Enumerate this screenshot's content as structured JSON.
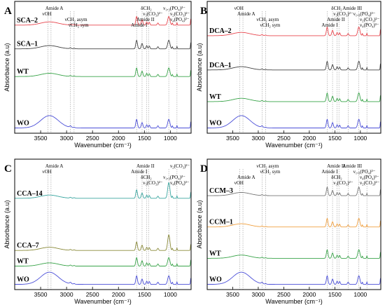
{
  "figure": {
    "panels": [
      {
        "id": "A",
        "chart_data": {
          "type": "line",
          "xlabel": "Wavenumber (cm⁻¹)",
          "ylabel": "Absorbance (a.u)",
          "xlim": [
            4000,
            600
          ],
          "x_reversed": true,
          "x_ticks": [
            3500,
            3000,
            2500,
            2000,
            1500,
            1000
          ],
          "series": [
            {
              "name": "SCA–2",
              "color": "#e8474f",
              "offset": 0.82
            },
            {
              "name": "SCA–1",
              "color": "#444444",
              "offset": 0.64
            },
            {
              "name": "WT",
              "color": "#3aa44a",
              "offset": 0.43
            },
            {
              "name": "WO",
              "color": "#4b4fd8",
              "offset": 0.04
            }
          ],
          "annotations": [
            {
              "text": "Amide A",
              "x": 3300
            },
            {
              "text": "νOH",
              "x": 3360
            },
            {
              "text": "νCH₂ asym",
              "x": 2925
            },
            {
              "text": "νCH₂ sym",
              "x": 2855
            },
            {
              "text": "δCH₂",
              "x": 1460
            },
            {
              "text": "ν₃(CO₃)²⁻",
              "x": 1420
            },
            {
              "text": "Amide II",
              "x": 1545
            },
            {
              "text": "Amide I",
              "x": 1650
            },
            {
              "text": "ν₁,₃(PO₄)³⁻",
              "x": 1030
            },
            {
              "text": "ν₂(CO₃)²⁻",
              "x": 872
            },
            {
              "text": "ν₄(PO₄)³⁻",
              "x": 600
            }
          ]
        }
      },
      {
        "id": "B",
        "chart_data": {
          "type": "line",
          "xlabel": "Wavenumber (cm⁻¹)",
          "ylabel": "Absorbance (a.u)",
          "xlim": [
            4000,
            600
          ],
          "x_reversed": true,
          "x_ticks": [
            3500,
            3000,
            2500,
            2000,
            1500,
            1000
          ],
          "series": [
            {
              "name": "DCA–2",
              "color": "#e8474f",
              "offset": 0.74
            },
            {
              "name": "DCA–1",
              "color": "#444444",
              "offset": 0.48
            },
            {
              "name": "WT",
              "color": "#3aa44a",
              "offset": 0.24
            },
            {
              "name": "WO",
              "color": "#4b4fd8",
              "offset": 0.04
            }
          ],
          "annotations": [
            {
              "text": "νOH",
              "x": 3360
            },
            {
              "text": "Amide A",
              "x": 3300
            },
            {
              "text": "νCH₂ asym",
              "x": 2925
            },
            {
              "text": "νCH₂ sym",
              "x": 2855
            },
            {
              "text": "δCH₂",
              "x": 1460
            },
            {
              "text": "ν₃(CO₃)²⁻",
              "x": 1420
            },
            {
              "text": "Amide II",
              "x": 1545
            },
            {
              "text": "Amide I",
              "x": 1650
            },
            {
              "text": "Amide III",
              "x": 1240
            },
            {
              "text": "ν₁,₃(PO₄)³⁻",
              "x": 1030
            },
            {
              "text": "ν₂(CO₃)²⁻",
              "x": 872
            },
            {
              "text": "ν₄(PO₄)³⁻",
              "x": 600
            }
          ]
        }
      },
      {
        "id": "C",
        "chart_data": {
          "type": "line",
          "xlabel": "Wavenumber (cm⁻¹)",
          "ylabel": "Absorbance (a.u)",
          "xlim": [
            4000,
            600
          ],
          "x_reversed": true,
          "x_ticks": [
            3500,
            3000,
            2500,
            2000,
            1500,
            1000
          ],
          "series": [
            {
              "name": "CCA–14",
              "color": "#3aa6a0",
              "offset": 0.7
            },
            {
              "name": "CCA–7",
              "color": "#8a8a3a",
              "offset": 0.3
            },
            {
              "name": "WT",
              "color": "#3aa44a",
              "offset": 0.18
            },
            {
              "name": "WO",
              "color": "#4b4fd8",
              "offset": 0.04
            }
          ],
          "annotations": [
            {
              "text": "Amide A",
              "x": 3300
            },
            {
              "text": "νOH",
              "x": 3360
            },
            {
              "text": "δCH₂",
              "x": 1460
            },
            {
              "text": "ν₃(CO₃)²⁻",
              "x": 1420
            },
            {
              "text": "Amide II",
              "x": 1545
            },
            {
              "text": "Amide I",
              "x": 1650
            },
            {
              "text": "ν₁,₃(PO₄)³⁻",
              "x": 1030
            },
            {
              "text": "ν₄(PO₄)³⁻",
              "x": 600
            },
            {
              "text": "ν₂(CO₃)²⁻",
              "x": 872
            }
          ]
        }
      },
      {
        "id": "D",
        "chart_data": {
          "type": "line",
          "xlabel": "Wavenumber (cm⁻¹)",
          "ylabel": "Absorbance (a.u)",
          "xlim": [
            4000,
            600
          ],
          "x_reversed": true,
          "x_ticks": [
            3500,
            3000,
            2500,
            2000,
            1500,
            1000
          ],
          "series": [
            {
              "name": "CCM–3",
              "color": "#777777",
              "offset": 0.72
            },
            {
              "name": "CCM–1",
              "color": "#f0a040",
              "offset": 0.48
            },
            {
              "name": "WT",
              "color": "#3aa44a",
              "offset": 0.24
            },
            {
              "name": "WO",
              "color": "#4b4fd8",
              "offset": 0.04
            }
          ],
          "annotations": [
            {
              "text": "νCH₂ asym",
              "x": 2925
            },
            {
              "text": "νCH₂ sym",
              "x": 2855
            },
            {
              "text": "Amide A",
              "x": 3300
            },
            {
              "text": "νOH",
              "x": 3360
            },
            {
              "text": "Amide II",
              "x": 1545
            },
            {
              "text": "Amide I",
              "x": 1650
            },
            {
              "text": "δCH₂",
              "x": 1460
            },
            {
              "text": "ν₃(CO₃)²⁻",
              "x": 1420
            },
            {
              "text": "Amide III",
              "x": 1240
            },
            {
              "text": "ν₁,₃(PO₄)³⁻",
              "x": 1030
            },
            {
              "text": "ν₄(PO₄)³⁻",
              "x": 600
            },
            {
              "text": "ν₂(CO₃)²⁻",
              "x": 872
            }
          ]
        }
      }
    ]
  }
}
